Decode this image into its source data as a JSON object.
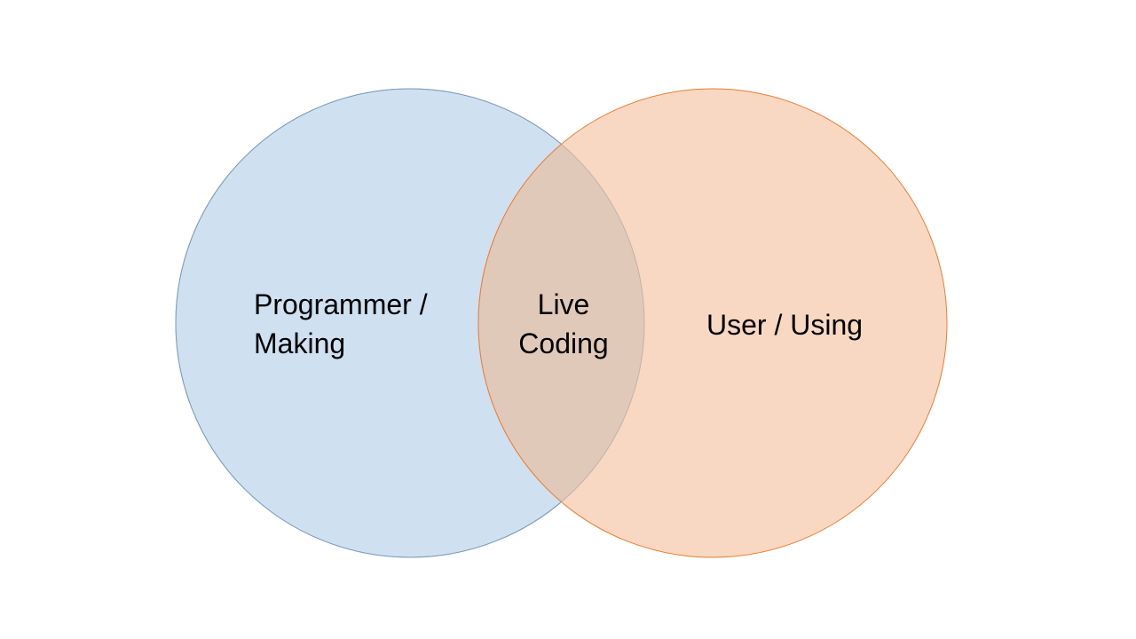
{
  "diagram": {
    "left_circle": {
      "lines": [
        "Programmer /",
        "Making"
      ],
      "fill": "#cfe0f1",
      "stroke": "#5b9bd5"
    },
    "right_circle": {
      "lines": [
        "User / Using"
      ],
      "fill": "#f8d8c2",
      "stroke": "#ed7d31"
    },
    "intersection": {
      "lines": [
        "Live",
        "Coding"
      ],
      "fill": "#e1c9b9"
    }
  }
}
